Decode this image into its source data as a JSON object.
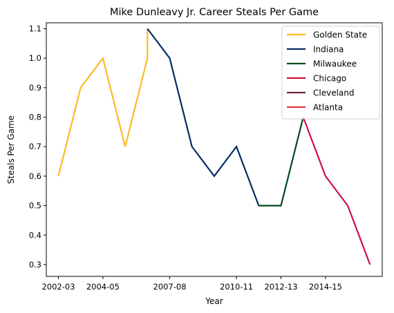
{
  "chart_data": {
    "type": "line",
    "title": "Mike Dunleavy Jr. Career Steals Per Game",
    "xlabel": "Year",
    "ylabel": "Steals Per Game",
    "x_tick_labels": [
      "2002-03",
      "2004-05",
      "2007-08",
      "2010-11",
      "2012-13",
      "2014-15"
    ],
    "y_ticks": [
      "0.3",
      "0.4",
      "0.5",
      "0.6",
      "0.7",
      "0.8",
      "0.9",
      "1.0",
      "1.1"
    ],
    "ylim": [
      0.26,
      1.12
    ],
    "legend_position": "top-right",
    "series": [
      {
        "name": "Golden State",
        "color": "#FDB927",
        "points": [
          [
            "2002-03",
            0.6
          ],
          [
            "2003-04",
            0.9
          ],
          [
            "2004-05",
            1.0
          ],
          [
            "2005-06",
            0.7
          ],
          [
            "2006-07",
            1.0
          ],
          [
            "2006-07",
            1.1
          ]
        ]
      },
      {
        "name": "Indiana",
        "color": "#002D62",
        "points": [
          [
            "2006-07",
            1.1
          ],
          [
            "2007-08",
            1.0
          ],
          [
            "2008-09",
            0.7
          ],
          [
            "2009-10",
            0.6
          ],
          [
            "2010-11",
            0.7
          ],
          [
            "2011-12",
            0.5
          ]
        ]
      },
      {
        "name": "Milwaukee",
        "color": "#00471B",
        "points": [
          [
            "2011-12",
            0.5
          ],
          [
            "2012-13",
            0.5
          ],
          [
            "2013-14",
            0.8
          ]
        ]
      },
      {
        "name": "Chicago",
        "color": "#CE1141",
        "points": [
          [
            "2013-14",
            0.8
          ],
          [
            "2014-15",
            0.6
          ],
          [
            "2015-16",
            0.5
          ],
          [
            "2016-17",
            0.3
          ]
        ]
      },
      {
        "name": "Cleveland",
        "color": "#6F263D",
        "points": []
      },
      {
        "name": "Atlanta",
        "color": "#E03A3E",
        "points": []
      }
    ]
  }
}
